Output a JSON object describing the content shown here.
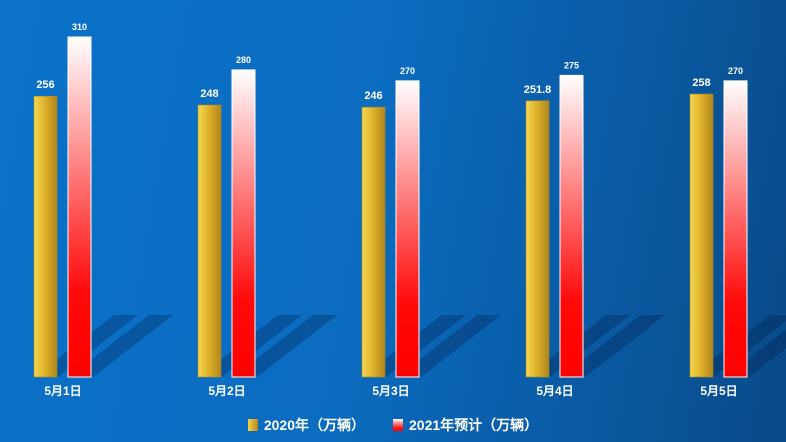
{
  "chart_data": {
    "type": "bar",
    "categories": [
      "5月1日",
      "5月2日",
      "5月3日",
      "5月4日",
      "5月5日"
    ],
    "series": [
      {
        "name": "2020年（万辆）",
        "values": [
          256,
          248,
          246,
          251.8,
          258
        ],
        "color": "#e2b52c"
      },
      {
        "name": "2021年预计（万辆）",
        "values": [
          310,
          280,
          270,
          275,
          270
        ],
        "color": "#ff0000"
      }
    ],
    "value_labels": [
      [
        "256",
        "248",
        "246",
        "251.8",
        "258"
      ],
      [
        "310",
        "280",
        "270",
        "275",
        "270"
      ]
    ],
    "ylim": [
      0,
      310
    ],
    "legend_position": "bottom",
    "grid": false
  }
}
